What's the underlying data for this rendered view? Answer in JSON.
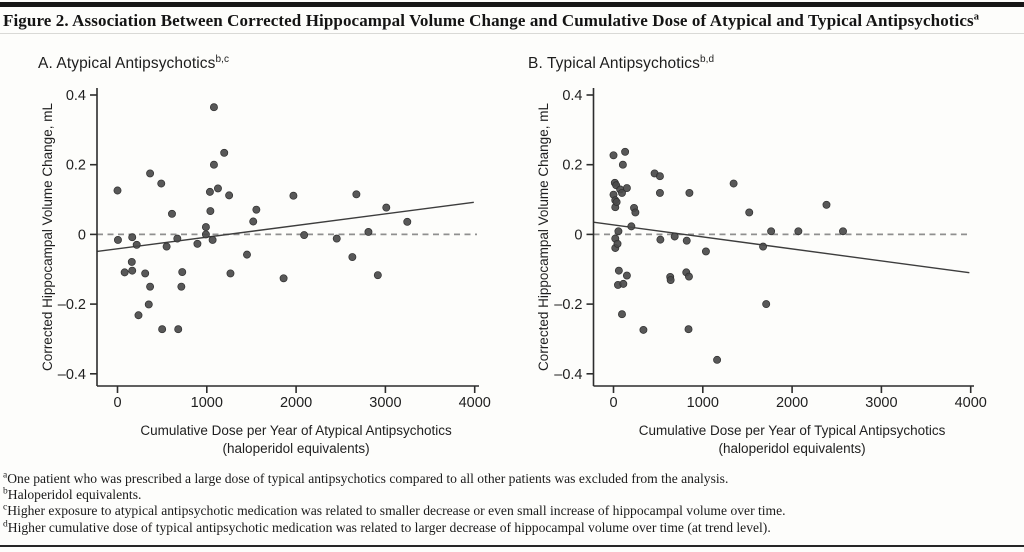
{
  "page": {
    "title": "Figure 2. Association Between Corrected Hippocampal Volume Change and Cumulative Dose of Atypical and Typical Antipsychotics",
    "title_superscript": "a"
  },
  "colors": {
    "axis": "#2d2d2d",
    "point_fill": "#4a4a4a",
    "point_stroke": "#2f2f2f",
    "trend_line": "#3d3d3d",
    "zero_dashed": "#8f8f8f",
    "text": "#1f1f1f"
  },
  "chart_data": [
    {
      "id": "panel-a",
      "type": "scatter",
      "panel_label": "A. Atypical Antipsychotics",
      "panel_label_superscript": "b,c",
      "xlabel_line1": "Cumulative Dose per Year of Atypical Antipsychotics",
      "xlabel_line2": "(haloperidol equivalents)",
      "ylabel": "Corrected Hippocampal Volume Change, mL",
      "xlim": [
        0,
        4000
      ],
      "ylim": [
        -0.4,
        0.4
      ],
      "x_ticks": [
        0,
        1000,
        2000,
        3000,
        4000
      ],
      "x_tick_labels": [
        "0",
        "1000",
        "2000",
        "3000",
        "4000"
      ],
      "y_ticks": [
        0.4,
        0.2,
        0,
        -0.2,
        -0.4
      ],
      "y_tick_labels": [
        "0.4",
        "0.2",
        "0",
        "–0.2",
        "–0.4"
      ],
      "grid": false,
      "zero_reference_line": true,
      "trend_line": {
        "x": [
          -230,
          3990
        ],
        "y": [
          -0.049,
          0.092
        ]
      },
      "points": [
        [
          0,
          0.126
        ],
        [
          5,
          -0.016
        ],
        [
          80,
          -0.109
        ],
        [
          160,
          -0.079
        ],
        [
          165,
          -0.008
        ],
        [
          165,
          -0.104
        ],
        [
          215,
          -0.03
        ],
        [
          235,
          -0.232
        ],
        [
          310,
          -0.112
        ],
        [
          350,
          -0.201
        ],
        [
          365,
          0.175
        ],
        [
          365,
          -0.15
        ],
        [
          490,
          0.146
        ],
        [
          500,
          -0.272
        ],
        [
          550,
          -0.035
        ],
        [
          610,
          0.059
        ],
        [
          670,
          -0.012
        ],
        [
          680,
          -0.272
        ],
        [
          715,
          -0.15
        ],
        [
          725,
          -0.108
        ],
        [
          895,
          -0.027
        ],
        [
          990,
          0.021
        ],
        [
          990,
          0.0
        ],
        [
          1035,
          0.122
        ],
        [
          1040,
          0.067
        ],
        [
          1065,
          -0.016
        ],
        [
          1080,
          0.365
        ],
        [
          1080,
          0.2
        ],
        [
          1125,
          0.132
        ],
        [
          1195,
          0.234
        ],
        [
          1250,
          0.112
        ],
        [
          1265,
          -0.112
        ],
        [
          1450,
          -0.058
        ],
        [
          1520,
          0.037
        ],
        [
          1555,
          0.071
        ],
        [
          1860,
          -0.126
        ],
        [
          1970,
          0.111
        ],
        [
          2090,
          -0.002
        ],
        [
          2455,
          -0.012
        ],
        [
          2630,
          -0.065
        ],
        [
          2675,
          0.115
        ],
        [
          2810,
          0.007
        ],
        [
          2915,
          -0.117
        ],
        [
          3010,
          0.077
        ],
        [
          3245,
          0.036
        ]
      ]
    },
    {
      "id": "panel-b",
      "type": "scatter",
      "panel_label": "B. Typical Antipsychotics",
      "panel_label_superscript": "b,d",
      "xlabel_line1": "Cumulative Dose per Year of Typical Antipsychotics",
      "xlabel_line2": "(haloperidol equivalents)",
      "ylabel": "Corrected Hippocampal Volume Change, mL",
      "xlim": [
        0,
        4000
      ],
      "ylim": [
        -0.4,
        0.4
      ],
      "x_ticks": [
        0,
        1000,
        2000,
        3000,
        4000
      ],
      "x_tick_labels": [
        "0",
        "1000",
        "2000",
        "3000",
        "4000"
      ],
      "y_ticks": [
        0.4,
        0.2,
        0,
        -0.2,
        -0.4
      ],
      "y_tick_labels": [
        "0.4",
        "0.2",
        "0",
        "–0.2",
        "–0.4"
      ],
      "grid": false,
      "zero_reference_line": true,
      "trend_line": {
        "x": [
          -225,
          3985
        ],
        "y": [
          0.035,
          -0.11
        ]
      },
      "points": [
        [
          0,
          0.227
        ],
        [
          0,
          0.114
        ],
        [
          15,
          0.148
        ],
        [
          20,
          0.098
        ],
        [
          20,
          0.078
        ],
        [
          20,
          -0.012
        ],
        [
          20,
          -0.039
        ],
        [
          30,
          0.141
        ],
        [
          35,
          0.093
        ],
        [
          45,
          -0.027
        ],
        [
          50,
          -0.145
        ],
        [
          55,
          0.009
        ],
        [
          60,
          -0.104
        ],
        [
          75,
          0.129
        ],
        [
          95,
          0.119
        ],
        [
          95,
          -0.229
        ],
        [
          105,
          0.2
        ],
        [
          110,
          -0.142
        ],
        [
          130,
          0.237
        ],
        [
          150,
          0.133
        ],
        [
          150,
          -0.118
        ],
        [
          200,
          0.023
        ],
        [
          230,
          0.076
        ],
        [
          245,
          0.063
        ],
        [
          335,
          -0.274
        ],
        [
          460,
          0.175
        ],
        [
          520,
          0.167
        ],
        [
          520,
          0.119
        ],
        [
          525,
          -0.015
        ],
        [
          635,
          -0.122
        ],
        [
          640,
          -0.131
        ],
        [
          685,
          -0.006
        ],
        [
          815,
          -0.109
        ],
        [
          820,
          -0.018
        ],
        [
          840,
          -0.272
        ],
        [
          845,
          -0.121
        ],
        [
          850,
          0.119
        ],
        [
          1035,
          -0.049
        ],
        [
          1160,
          -0.36
        ],
        [
          1345,
          0.146
        ],
        [
          1520,
          0.063
        ],
        [
          1675,
          -0.035
        ],
        [
          1710,
          -0.2
        ],
        [
          1765,
          0.009
        ],
        [
          2070,
          0.009
        ],
        [
          2385,
          0.085
        ],
        [
          2570,
          0.009
        ]
      ]
    }
  ],
  "footnotes": [
    {
      "marker": "a",
      "text": "One patient who was prescribed a large dose of typical antipsychotics compared to all other patients was excluded from the analysis."
    },
    {
      "marker": "b",
      "text": "Haloperidol equivalents."
    },
    {
      "marker": "c",
      "text": "Higher exposure to atypical antipsychotic medication was related to smaller decrease or even small increase of hippocampal volume over time."
    },
    {
      "marker": "d",
      "text": "Higher cumulative dose of typical antipsychotic medication was related to larger decrease of hippocampal volume over time (at trend level)."
    }
  ]
}
